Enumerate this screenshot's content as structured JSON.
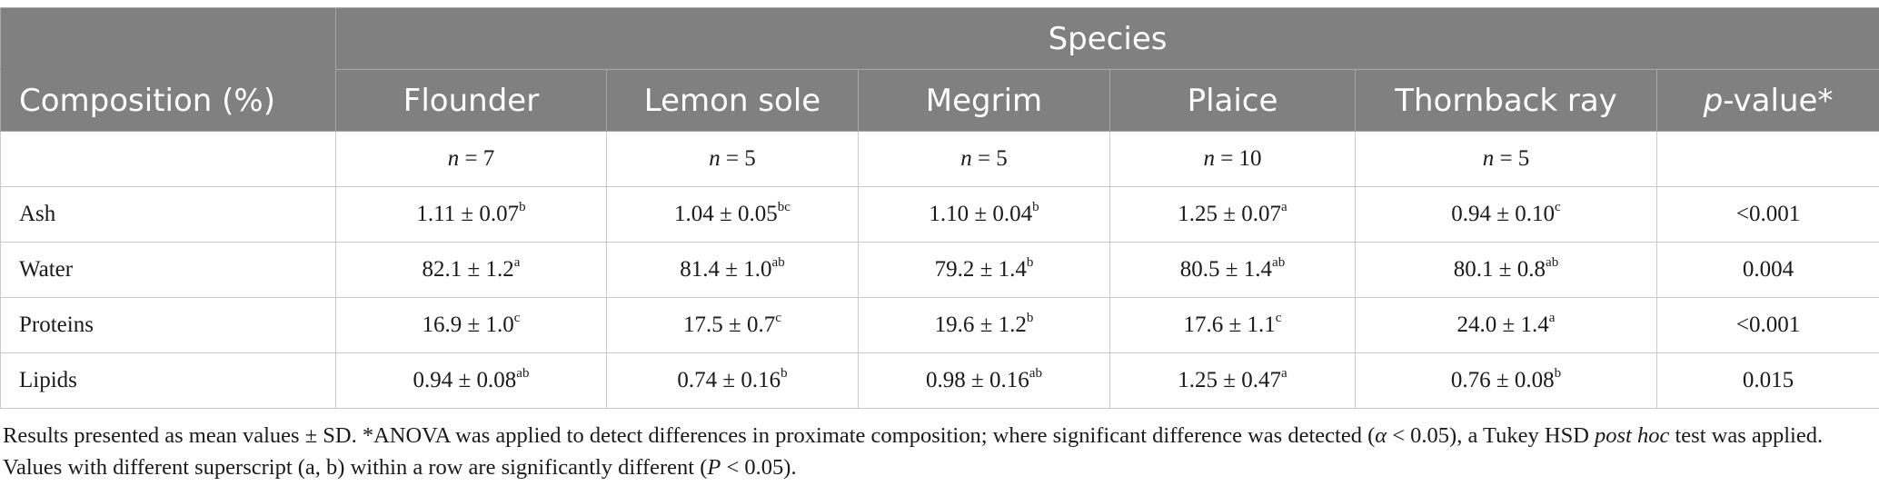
{
  "table": {
    "species_header": "Species",
    "composition_header": "Composition (%)",
    "columns": [
      {
        "name": "Flounder",
        "n_prefix": "n",
        "n_value": " = 7"
      },
      {
        "name": "Lemon sole",
        "n_prefix": "n",
        "n_value": " = 5"
      },
      {
        "name": "Megrim",
        "n_prefix": "n",
        "n_value": " = 5"
      },
      {
        "name": "Plaice",
        "n_prefix": "n",
        "n_value": " = 10"
      },
      {
        "name": "Thornback ray",
        "n_prefix": "n",
        "n_value": " = 5"
      }
    ],
    "pvalue_header_italic": "p",
    "pvalue_header_rest": "-value*",
    "rows": [
      {
        "label": "Ash",
        "cells": [
          {
            "value": "1.11 ± 0.07",
            "sup": "b"
          },
          {
            "value": "1.04 ± 0.05",
            "sup": "bc"
          },
          {
            "value": "1.10 ± 0.04",
            "sup": "b"
          },
          {
            "value": "1.25 ± 0.07",
            "sup": "a"
          },
          {
            "value": "0.94 ± 0.10",
            "sup": "c"
          }
        ],
        "p": "<0.001"
      },
      {
        "label": "Water",
        "cells": [
          {
            "value": "82.1 ± 1.2",
            "sup": "a"
          },
          {
            "value": "81.4 ± 1.0",
            "sup": "ab"
          },
          {
            "value": "79.2 ± 1.4",
            "sup": "b"
          },
          {
            "value": "80.5 ± 1.4",
            "sup": "ab"
          },
          {
            "value": "80.1 ± 0.8",
            "sup": "ab"
          }
        ],
        "p": "0.004"
      },
      {
        "label": "Proteins",
        "cells": [
          {
            "value": "16.9 ± 1.0",
            "sup": "c"
          },
          {
            "value": "17.5 ± 0.7",
            "sup": "c"
          },
          {
            "value": "19.6 ± 1.2",
            "sup": "b"
          },
          {
            "value": "17.6 ± 1.1",
            "sup": "c"
          },
          {
            "value": "24.0 ± 1.4",
            "sup": "a"
          }
        ],
        "p": "<0.001"
      },
      {
        "label": "Lipids",
        "cells": [
          {
            "value": "0.94 ± 0.08",
            "sup": "ab"
          },
          {
            "value": "0.74 ± 0.16",
            "sup": "b"
          },
          {
            "value": "0.98 ± 0.16",
            "sup": "ab"
          },
          {
            "value": "1.25 ± 0.47",
            "sup": "a"
          },
          {
            "value": "0.76 ± 0.08",
            "sup": "b"
          }
        ],
        "p": "0.015"
      }
    ]
  },
  "footnote": {
    "part1": "Results presented as mean values ± SD. *ANOVA was applied to detect differences in proximate composition; where significant difference was detected (",
    "alpha": "α",
    "part2": " < 0.05), a Tukey HSD ",
    "posthoc": "post hoc",
    "part3": " test was applied. Values with different superscript (a, b) within a row are significantly different (",
    "P": "P",
    "part4": " < 0.05)."
  },
  "colors": {
    "header_bg": "#808080",
    "header_text": "#ffffff",
    "grid": "#c9c9c9",
    "body_text": "#1a1a1a"
  }
}
